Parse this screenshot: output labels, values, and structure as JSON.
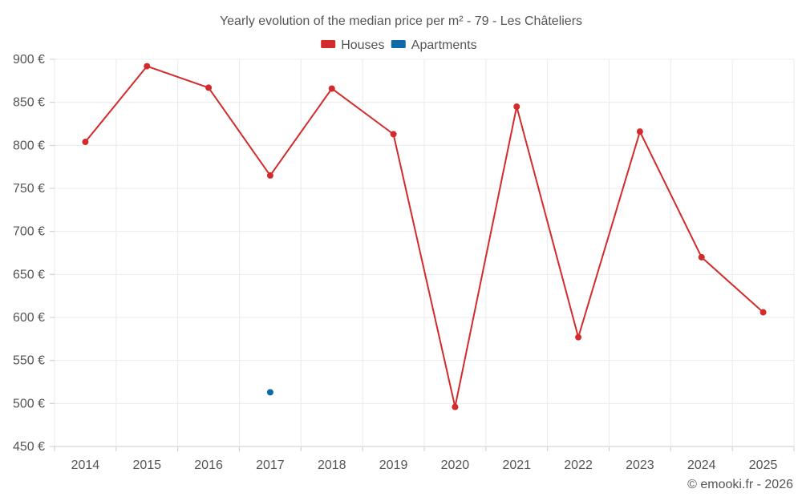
{
  "chart_data": {
    "type": "line",
    "title": "Yearly evolution of the median price per m² - 79 - Les Châteliers",
    "categories": [
      "2014",
      "2015",
      "2016",
      "2017",
      "2018",
      "2019",
      "2020",
      "2021",
      "2022",
      "2023",
      "2024",
      "2025"
    ],
    "series": [
      {
        "name": "Houses",
        "color": "#d32b2b",
        "values": [
          804,
          892,
          867,
          765,
          866,
          813,
          496,
          845,
          577,
          816,
          670,
          606
        ]
      },
      {
        "name": "Apartments",
        "color": "#0f6aa8",
        "values": [
          null,
          null,
          null,
          513,
          null,
          null,
          null,
          null,
          null,
          null,
          null,
          null
        ]
      }
    ],
    "ylim": [
      450,
      900
    ],
    "yticks": [
      450,
      500,
      550,
      600,
      650,
      700,
      750,
      800,
      850,
      900
    ],
    "yunit": "€",
    "grid": true,
    "legend_position": "top-center"
  },
  "credit": "© emooki.fr - 2026"
}
